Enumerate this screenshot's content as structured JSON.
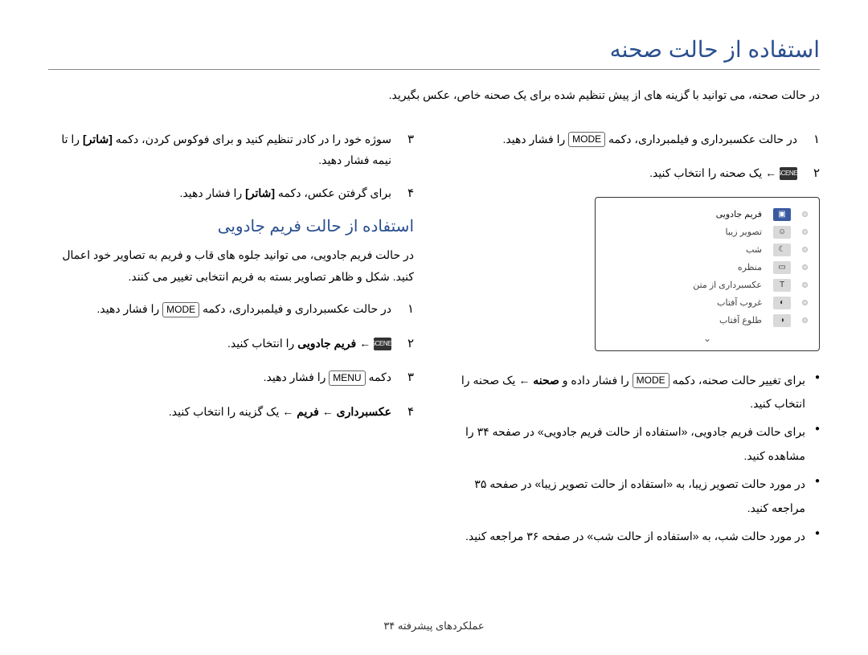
{
  "title": "استفاده از حالت صحنه",
  "intro": "در حالت صحنه، می توانید با گزینه های از پیش تنظیم شده برای یک صحنه خاص، عکس بگیرید.",
  "right": {
    "steps": [
      {
        "num": "١",
        "parts": [
          "در حالت عکسبرداری و فیلمبرداری، دکمه ",
          {
            "btn": "MODE"
          },
          " را فشار دهید."
        ]
      },
      {
        "num": "٢",
        "parts": [
          {
            "icon": "scene"
          },
          " ← یک صحنه را انتخاب کنید."
        ]
      }
    ],
    "preview": {
      "items": [
        {
          "label": "فریم جادویی",
          "glyph": "▣",
          "active": true
        },
        {
          "label": "تصویر زیبا",
          "glyph": "☺",
          "active": false
        },
        {
          "label": "شب",
          "glyph": "☾",
          "active": false
        },
        {
          "label": "منظره",
          "glyph": "▭",
          "active": false
        },
        {
          "label": "عکسبرداری از متن",
          "glyph": "T",
          "active": false
        },
        {
          "label": "غروب آفتاب",
          "glyph": "◐",
          "active": false
        },
        {
          "label": "طلوع آفتاب",
          "glyph": "◑",
          "active": false
        }
      ]
    },
    "bullets": [
      {
        "parts": [
          "برای تغییر حالت صحنه، دکمه ",
          {
            "btn": "MODE"
          },
          " را فشار داده و ",
          {
            "bold": "صحنه"
          },
          " ← یک صحنه را انتخاب کنید."
        ]
      },
      {
        "parts": [
          "برای حالت فریم جادویی، «استفاده از حالت فریم جادویی» در صفحه ۳۴ را مشاهده کنید."
        ]
      },
      {
        "parts": [
          "در مورد حالت تصویر زیبا، به «استفاده از حالت تصویر زیبا» در صفحه ۳۵ مراجعه کنید."
        ]
      },
      {
        "parts": [
          "در مورد حالت شب، به «استفاده از حالت شب» در صفحه ۳۶ مراجعه کنید."
        ]
      }
    ]
  },
  "left": {
    "steps_top": [
      {
        "num": "٣",
        "parts": [
          "سوژه خود را در کادر تنظیم کنید و برای فوکوس کردن، دکمه ",
          {
            "bold": "[شاتر]"
          },
          " را تا نیمه فشار دهید."
        ]
      },
      {
        "num": "۴",
        "parts": [
          "برای گرفتن عکس، دکمه ",
          {
            "bold": "[شاتر]"
          },
          " را فشار دهید."
        ]
      }
    ],
    "subheading": "استفاده از حالت فریم جادویی",
    "subdesc": "در حالت فریم جادویی، می توانید جلوه های قاب و فریم به تصاویر خود اعمال کنید. شکل و ظاهر تصاویر بسته به فریم انتخابی تغییر می کنند.",
    "steps_bottom": [
      {
        "num": "١",
        "parts": [
          "در حالت عکسبرداری و فیلمبرداری، دکمه ",
          {
            "btn": "MODE"
          },
          " را فشار دهید."
        ]
      },
      {
        "num": "٢",
        "parts": [
          {
            "icon": "scene"
          },
          " ← ",
          {
            "bold": "فریم جادویی"
          },
          " را انتخاب کنید."
        ]
      },
      {
        "num": "٣",
        "parts": [
          "دکمه ",
          {
            "btn": "MENU"
          },
          " را فشار دهید."
        ]
      },
      {
        "num": "۴",
        "parts": [
          {
            "bold": "عکسبرداری"
          },
          " ← ",
          {
            "bold": "فریم"
          },
          " ← یک گزینه را انتخاب کنید."
        ]
      }
    ]
  },
  "footer": "عملکردهای پیشرفته  ۳۴"
}
